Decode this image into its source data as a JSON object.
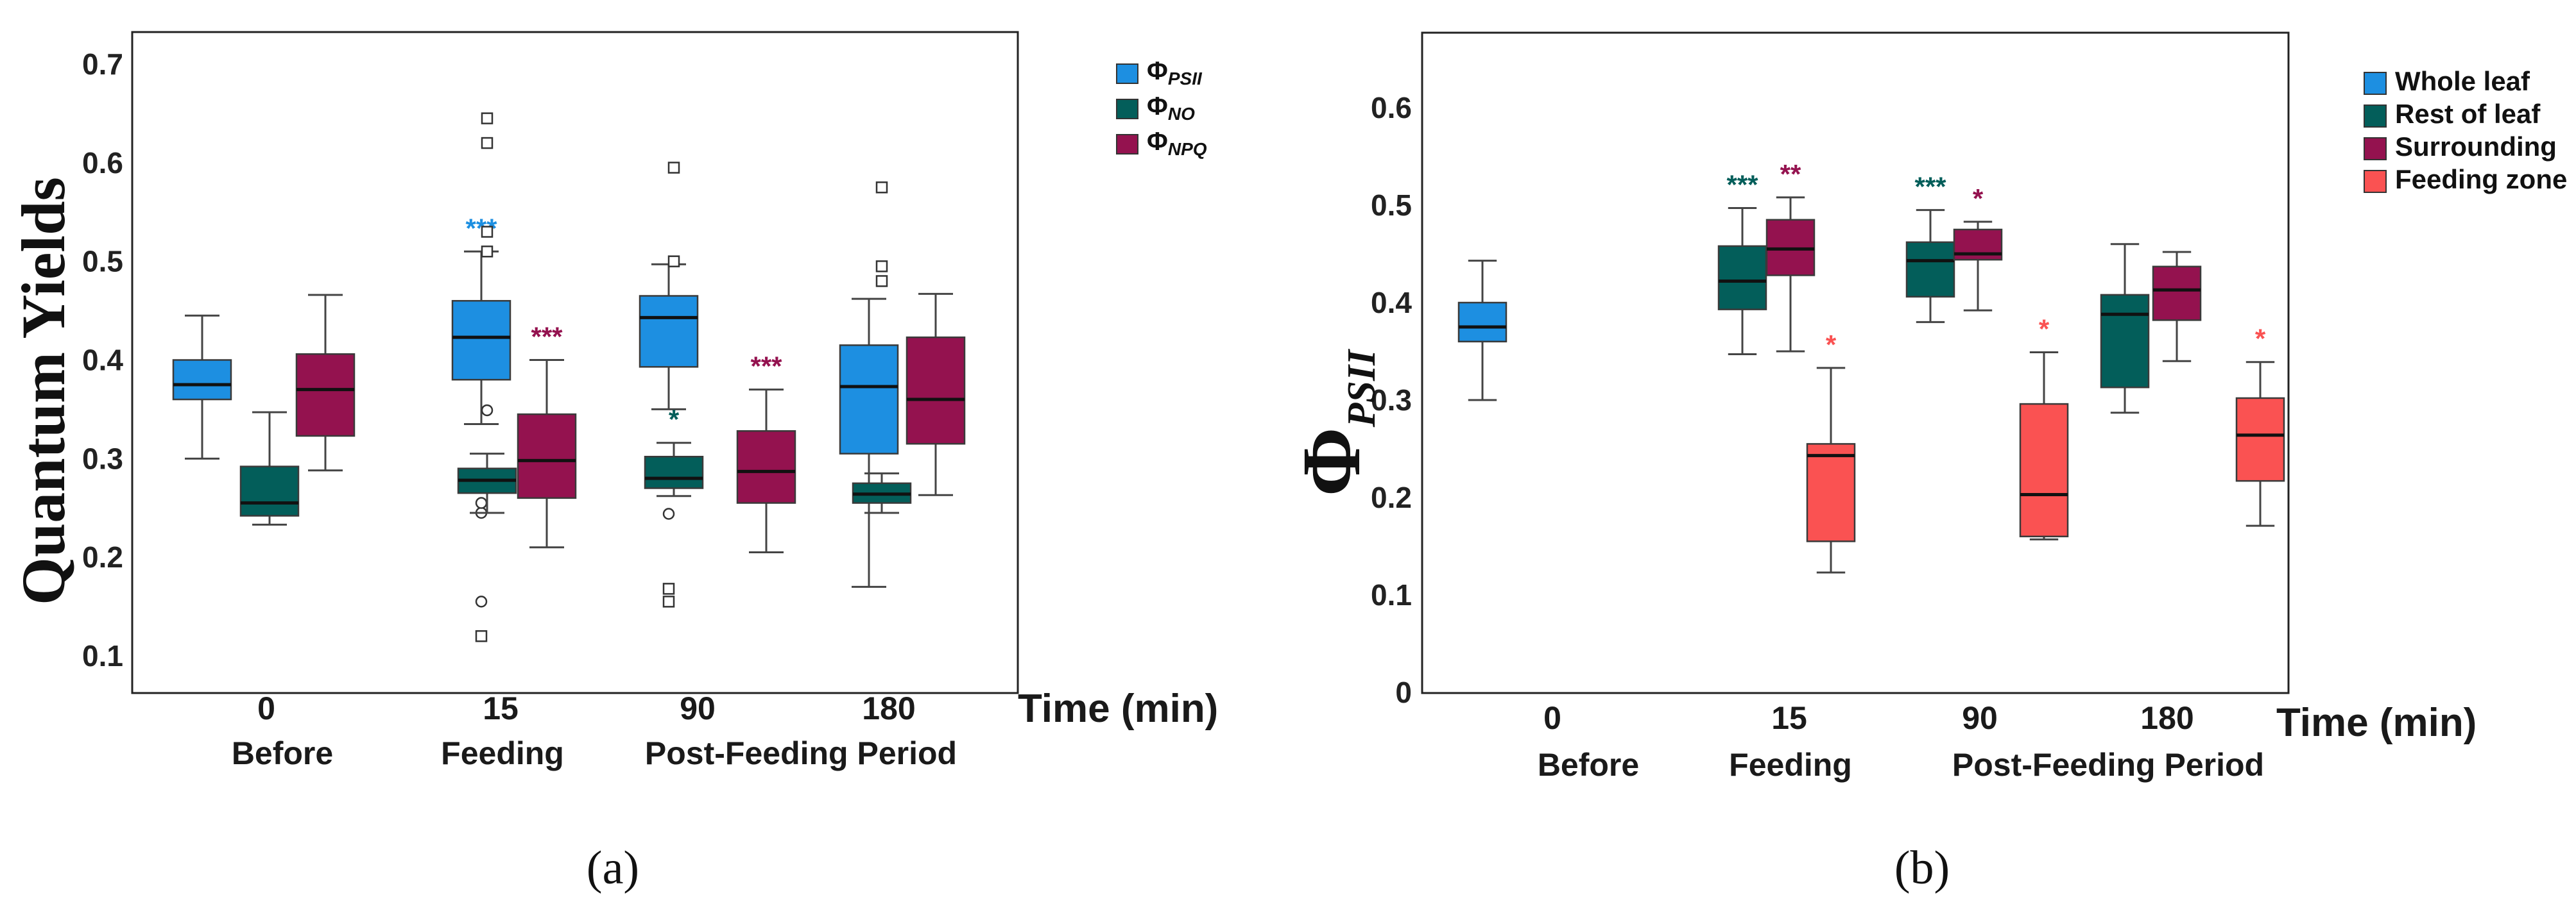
{
  "chart_data": [
    {
      "type": "box",
      "panel_label": "(a)",
      "ylabel": "Quantum Yields",
      "ylim": [
        0.07,
        0.73
      ],
      "yticks": [
        "0.1",
        "0.2",
        "0.3",
        "0.4",
        "0.5",
        "0.6",
        "0.7"
      ],
      "xlabel": "Time (min)",
      "time_labels": [
        "0",
        "15",
        "90",
        "180"
      ],
      "period_labels": [
        "Before",
        "Feeding",
        "Post-Feeding Period"
      ],
      "legend": [
        {
          "symbol": "Φ",
          "subscript": "PSII",
          "color": "#1d8fe1"
        },
        {
          "symbol": "Φ",
          "subscript": "NO",
          "color": "#035e5a"
        },
        {
          "symbol": "Φ",
          "subscript": "NPQ",
          "color": "#94124f"
        }
      ],
      "series": [
        {
          "name": "ΦPSII",
          "color": "#1d8fe1",
          "boxes": [
            {
              "group": "0",
              "whisker_low": 0.3,
              "q1": 0.36,
              "median": 0.375,
              "q3": 0.4,
              "whisker_high": 0.445,
              "outliers_circle": [],
              "outliers_square": [],
              "sig": ""
            },
            {
              "group": "15",
              "whisker_low": 0.335,
              "q1": 0.38,
              "median": 0.423,
              "q3": 0.46,
              "whisker_high": 0.51,
              "outliers_circle": [
                0.245,
                0.255,
                0.155
              ],
              "outliers_square": [
                0.12
              ],
              "sig": "***"
            },
            {
              "group": "90",
              "whisker_low": 0.35,
              "q1": 0.393,
              "median": 0.443,
              "q3": 0.465,
              "whisker_high": 0.497,
              "outliers_circle": [
                0.244
              ],
              "outliers_square": [
                0.155,
                0.168
              ],
              "sig": ""
            },
            {
              "group": "180",
              "whisker_low": 0.17,
              "q1": 0.305,
              "median": 0.373,
              "q3": 0.415,
              "whisker_high": 0.462,
              "outliers_circle": [],
              "outliers_square": [],
              "sig": ""
            }
          ]
        },
        {
          "name": "ΦNO",
          "color": "#035e5a",
          "boxes": [
            {
              "group": "0",
              "whisker_low": 0.233,
              "q1": 0.242,
              "median": 0.255,
              "q3": 0.292,
              "whisker_high": 0.347,
              "outliers_circle": [],
              "outliers_square": [],
              "sig": ""
            },
            {
              "group": "15",
              "whisker_low": 0.245,
              "q1": 0.265,
              "median": 0.278,
              "q3": 0.29,
              "whisker_high": 0.305,
              "outliers_circle": [
                0.349
              ],
              "outliers_square": [
                0.51,
                0.53,
                0.62,
                0.645
              ],
              "sig": ""
            },
            {
              "group": "90",
              "whisker_low": 0.262,
              "q1": 0.27,
              "median": 0.28,
              "q3": 0.302,
              "whisker_high": 0.316,
              "outliers_circle": [],
              "outliers_square": [
                0.5,
                0.595
              ],
              "sig": "*"
            },
            {
              "group": "180",
              "whisker_low": 0.245,
              "q1": 0.255,
              "median": 0.264,
              "q3": 0.275,
              "whisker_high": 0.285,
              "outliers_circle": [],
              "outliers_square": [
                0.48,
                0.495,
                0.575
              ],
              "sig": ""
            }
          ]
        },
        {
          "name": "ΦNPQ",
          "color": "#94124f",
          "boxes": [
            {
              "group": "0",
              "whisker_low": 0.288,
              "q1": 0.323,
              "median": 0.37,
              "q3": 0.406,
              "whisker_high": 0.466,
              "outliers_circle": [],
              "outliers_square": [],
              "sig": ""
            },
            {
              "group": "15",
              "whisker_low": 0.21,
              "q1": 0.26,
              "median": 0.298,
              "q3": 0.345,
              "whisker_high": 0.4,
              "outliers_circle": [],
              "outliers_square": [],
              "sig": "***"
            },
            {
              "group": "90",
              "whisker_low": 0.205,
              "q1": 0.255,
              "median": 0.287,
              "q3": 0.328,
              "whisker_high": 0.37,
              "outliers_circle": [],
              "outliers_square": [],
              "sig": "***"
            },
            {
              "group": "180",
              "whisker_low": 0.263,
              "q1": 0.315,
              "median": 0.36,
              "q3": 0.423,
              "whisker_high": 0.467,
              "outliers_circle": [],
              "outliers_square": [],
              "sig": ""
            }
          ]
        }
      ]
    },
    {
      "type": "box",
      "panel_label": "(b)",
      "ylabel_symbol": "Φ",
      "ylabel_subscript": "PSII",
      "ylim": [
        0,
        0.7
      ],
      "yticks": [
        "0",
        "0.1",
        "0.2",
        "0.3",
        "0.4",
        "0.5",
        "0.6"
      ],
      "xlabel": "Time (min)",
      "time_labels": [
        "0",
        "15",
        "90",
        "180"
      ],
      "period_labels": [
        "Before",
        "Feeding",
        "Post-Feeding Period"
      ],
      "legend": [
        {
          "label": "Whole leaf",
          "color": "#1d8fe1"
        },
        {
          "label": "Rest of leaf",
          "color": "#035e5a"
        },
        {
          "label": "Surrounding",
          "color": "#94124f"
        },
        {
          "label": "Feeding zone",
          "color": "#fa5252"
        }
      ],
      "series": [
        {
          "name": "Whole leaf",
          "color": "#1d8fe1",
          "boxes": [
            {
              "group": "0",
              "whisker_low": 0.3,
              "q1": 0.36,
              "median": 0.375,
              "q3": 0.4,
              "whisker_high": 0.443,
              "sig": ""
            }
          ]
        },
        {
          "name": "Rest of leaf",
          "color": "#035e5a",
          "boxes": [
            {
              "group": "15",
              "whisker_low": 0.347,
              "q1": 0.393,
              "median": 0.422,
              "q3": 0.458,
              "whisker_high": 0.497,
              "sig": "***"
            },
            {
              "group": "90",
              "whisker_low": 0.38,
              "q1": 0.406,
              "median": 0.443,
              "q3": 0.462,
              "whisker_high": 0.495,
              "sig": "***"
            },
            {
              "group": "180",
              "whisker_low": 0.287,
              "q1": 0.313,
              "median": 0.388,
              "q3": 0.408,
              "whisker_high": 0.46,
              "sig": ""
            }
          ]
        },
        {
          "name": "Surrounding",
          "color": "#94124f",
          "boxes": [
            {
              "group": "15",
              "whisker_low": 0.35,
              "q1": 0.428,
              "median": 0.455,
              "q3": 0.485,
              "whisker_high": 0.508,
              "sig": "**"
            },
            {
              "group": "90",
              "whisker_low": 0.392,
              "q1": 0.444,
              "median": 0.45,
              "q3": 0.475,
              "whisker_high": 0.483,
              "sig": "*"
            },
            {
              "group": "180",
              "whisker_low": 0.34,
              "q1": 0.382,
              "median": 0.413,
              "q3": 0.437,
              "whisker_high": 0.452,
              "sig": ""
            }
          ]
        },
        {
          "name": "Feeding zone",
          "color": "#fa5252",
          "boxes": [
            {
              "group": "15",
              "whisker_low": 0.123,
              "q1": 0.155,
              "median": 0.243,
              "q3": 0.255,
              "whisker_high": 0.333,
              "sig": "*"
            },
            {
              "group": "90",
              "whisker_low": 0.157,
              "q1": 0.16,
              "median": 0.203,
              "q3": 0.296,
              "whisker_high": 0.349,
              "sig": "*"
            },
            {
              "group": "180",
              "whisker_low": 0.171,
              "q1": 0.217,
              "median": 0.264,
              "q3": 0.302,
              "whisker_high": 0.339,
              "sig": "*"
            }
          ]
        }
      ]
    }
  ]
}
